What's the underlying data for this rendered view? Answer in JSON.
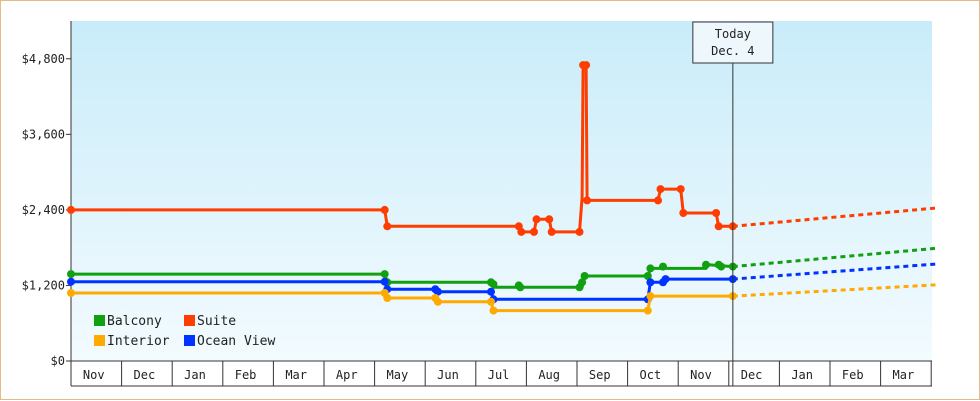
{
  "chart_data": {
    "type": "line",
    "title": "",
    "xlabel": "",
    "ylabel": "",
    "ylim": [
      0,
      5400
    ],
    "y_ticks": [
      0,
      1200,
      2400,
      3600,
      4800
    ],
    "y_tick_labels": [
      "$0",
      "$1,200",
      "$2,400",
      "$3,600",
      "$4,800"
    ],
    "x_months": [
      "Nov",
      "Dec",
      "Jan",
      "Feb",
      "Mar",
      "Apr",
      "May",
      "Jun",
      "Jul",
      "Aug",
      "Sep",
      "Oct",
      "Nov",
      "Dec",
      "Jan",
      "Feb",
      "Mar"
    ],
    "x_range_months": [
      0,
      17
    ],
    "grid": false,
    "background_gradient": [
      "#c9ecfa",
      "#f3fbfe"
    ],
    "today_marker": {
      "line1": "Today",
      "line2": "Dec. 4",
      "x": 13.08
    },
    "legend": {
      "placement": "bottom-left",
      "entries": [
        "Balcony",
        "Suite",
        "Interior",
        "Ocean View"
      ]
    },
    "series": [
      {
        "name": "Suite",
        "color": "#ff3d00",
        "points": [
          [
            0,
            2400
          ],
          [
            6.2,
            2400
          ],
          [
            6.25,
            2140
          ],
          [
            8.85,
            2140
          ],
          [
            8.9,
            2050
          ],
          [
            9.15,
            2050
          ],
          [
            9.2,
            2250
          ],
          [
            9.45,
            2250
          ],
          [
            9.5,
            2050
          ],
          [
            10.05,
            2050
          ],
          [
            10.1,
            2600
          ],
          [
            10.12,
            4700
          ],
          [
            10.18,
            4700
          ],
          [
            10.2,
            2550
          ],
          [
            11.6,
            2550
          ],
          [
            11.65,
            2730
          ],
          [
            12.05,
            2730
          ],
          [
            12.1,
            2350
          ],
          [
            12.75,
            2350
          ],
          [
            12.8,
            2140
          ],
          [
            13.08,
            2140
          ]
        ],
        "markers": [
          [
            0,
            2400
          ],
          [
            6.2,
            2400
          ],
          [
            6.25,
            2140
          ],
          [
            8.85,
            2140
          ],
          [
            8.9,
            2050
          ],
          [
            9.15,
            2050
          ],
          [
            9.2,
            2250
          ],
          [
            9.45,
            2250
          ],
          [
            9.5,
            2050
          ],
          [
            10.05,
            2050
          ],
          [
            10.12,
            4700
          ],
          [
            10.18,
            4700
          ],
          [
            10.2,
            2550
          ],
          [
            11.6,
            2550
          ],
          [
            11.65,
            2730
          ],
          [
            12.05,
            2730
          ],
          [
            12.1,
            2350
          ],
          [
            12.75,
            2350
          ],
          [
            12.8,
            2140
          ],
          [
            13.08,
            2140
          ]
        ],
        "forecast": [
          [
            13.08,
            2140
          ],
          [
            17.1,
            2430
          ]
        ]
      },
      {
        "name": "Balcony",
        "color": "#10a010",
        "points": [
          [
            0,
            1380
          ],
          [
            6.2,
            1380
          ],
          [
            6.25,
            1250
          ],
          [
            8.3,
            1250
          ],
          [
            8.35,
            1170
          ],
          [
            10.1,
            1170
          ],
          [
            10.15,
            1350
          ],
          [
            11.4,
            1350
          ],
          [
            11.45,
            1470
          ],
          [
            12.55,
            1470
          ],
          [
            12.6,
            1530
          ],
          [
            13.08,
            1500
          ]
        ],
        "markers": [
          [
            0,
            1380
          ],
          [
            6.2,
            1380
          ],
          [
            6.25,
            1250
          ],
          [
            8.3,
            1250
          ],
          [
            8.35,
            1220
          ],
          [
            8.85,
            1200
          ],
          [
            8.88,
            1170
          ],
          [
            10.05,
            1170
          ],
          [
            10.1,
            1250
          ],
          [
            10.15,
            1350
          ],
          [
            11.4,
            1350
          ],
          [
            11.45,
            1470
          ],
          [
            11.7,
            1500
          ],
          [
            12.55,
            1530
          ],
          [
            12.8,
            1530
          ],
          [
            12.85,
            1500
          ],
          [
            13.08,
            1500
          ]
        ],
        "forecast": [
          [
            13.08,
            1500
          ],
          [
            17.1,
            1790
          ]
        ]
      },
      {
        "name": "Ocean View",
        "color": "#0033ff",
        "points": [
          [
            0,
            1260
          ],
          [
            6.2,
            1260
          ],
          [
            6.25,
            1140
          ],
          [
            7.2,
            1140
          ],
          [
            7.25,
            1100
          ],
          [
            8.3,
            1100
          ],
          [
            8.35,
            980
          ],
          [
            11.4,
            980
          ],
          [
            11.45,
            1250
          ],
          [
            11.7,
            1250
          ],
          [
            11.75,
            1300
          ],
          [
            13.08,
            1300
          ]
        ],
        "markers": [
          [
            0,
            1260
          ],
          [
            6.2,
            1260
          ],
          [
            6.25,
            1140
          ],
          [
            7.2,
            1140
          ],
          [
            7.25,
            1100
          ],
          [
            8.3,
            1100
          ],
          [
            8.35,
            980
          ],
          [
            11.4,
            980
          ],
          [
            11.45,
            1250
          ],
          [
            11.7,
            1250
          ],
          [
            11.75,
            1300
          ],
          [
            13.08,
            1300
          ]
        ],
        "forecast": [
          [
            13.08,
            1300
          ],
          [
            17.1,
            1540
          ]
        ]
      },
      {
        "name": "Interior",
        "color": "#ffaa00",
        "points": [
          [
            0,
            1080
          ],
          [
            6.2,
            1080
          ],
          [
            6.25,
            1000
          ],
          [
            7.2,
            1000
          ],
          [
            7.25,
            940
          ],
          [
            8.3,
            940
          ],
          [
            8.35,
            800
          ],
          [
            11.4,
            800
          ],
          [
            11.45,
            1030
          ],
          [
            13.08,
            1030
          ]
        ],
        "markers": [
          [
            0,
            1080
          ],
          [
            6.2,
            1080
          ],
          [
            6.25,
            1000
          ],
          [
            7.2,
            1000
          ],
          [
            7.25,
            940
          ],
          [
            8.3,
            940
          ],
          [
            8.35,
            800
          ],
          [
            11.4,
            800
          ],
          [
            11.45,
            1030
          ],
          [
            13.08,
            1030
          ]
        ],
        "forecast": [
          [
            13.08,
            1030
          ],
          [
            17.1,
            1210
          ]
        ]
      }
    ]
  }
}
